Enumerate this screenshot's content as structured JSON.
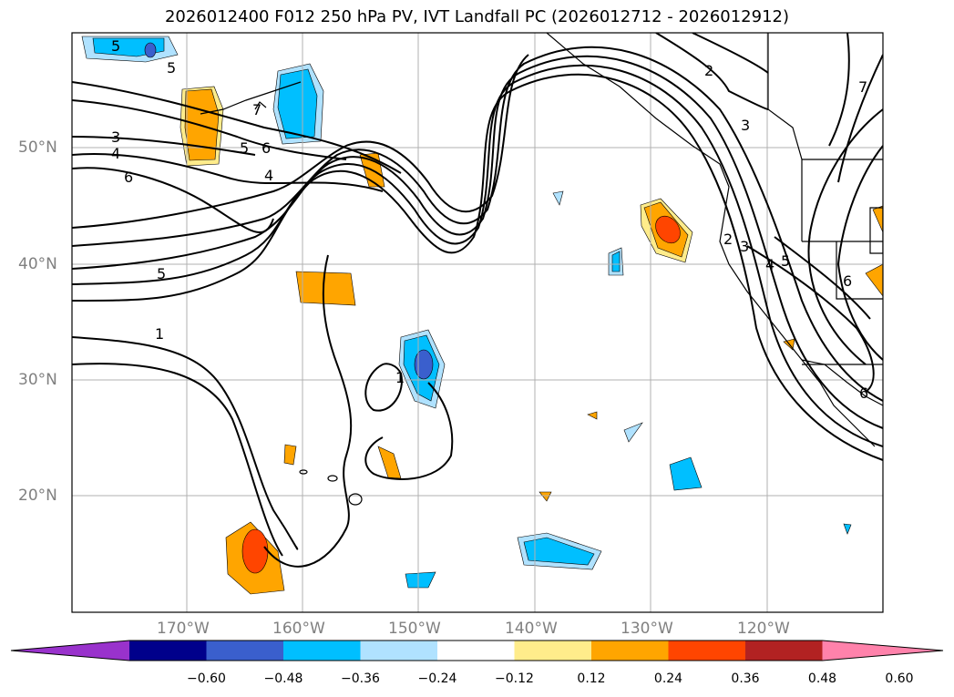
{
  "title": "2026012400 F012 250 hPa PV, IVT Landfall PC (2026012712 - 2026012912)",
  "lat_labels": [
    "50°N",
    "40°N",
    "30°N",
    "20°N"
  ],
  "lon_labels": [
    "170°W",
    "160°W",
    "150°W",
    "140°W",
    "130°W",
    "120°W"
  ],
  "colorbar": {
    "ticks": [
      "−0.60",
      "−0.48",
      "−0.36",
      "−0.24",
      "−0.12",
      "0.12",
      "0.24",
      "0.36",
      "0.48",
      "0.60"
    ],
    "colors": [
      "#9932cc",
      "#00008b",
      "#3a5fcd",
      "#00bfff",
      "#b0e2ff",
      "#ffffff",
      "#ffec8b",
      "#ffa500",
      "#ff4500",
      "#b22222",
      "#ff82ab"
    ]
  },
  "contour_labels": [
    "5",
    "5",
    "3",
    "4",
    "6",
    "5",
    "6",
    "4",
    "5",
    "1",
    "1",
    "7",
    "2",
    "3",
    "3",
    "2",
    "4",
    "5",
    "6",
    "7",
    "6"
  ],
  "colors": {
    "contour": "#000000",
    "grid": "#b0b0b0",
    "coast": "#000000"
  }
}
